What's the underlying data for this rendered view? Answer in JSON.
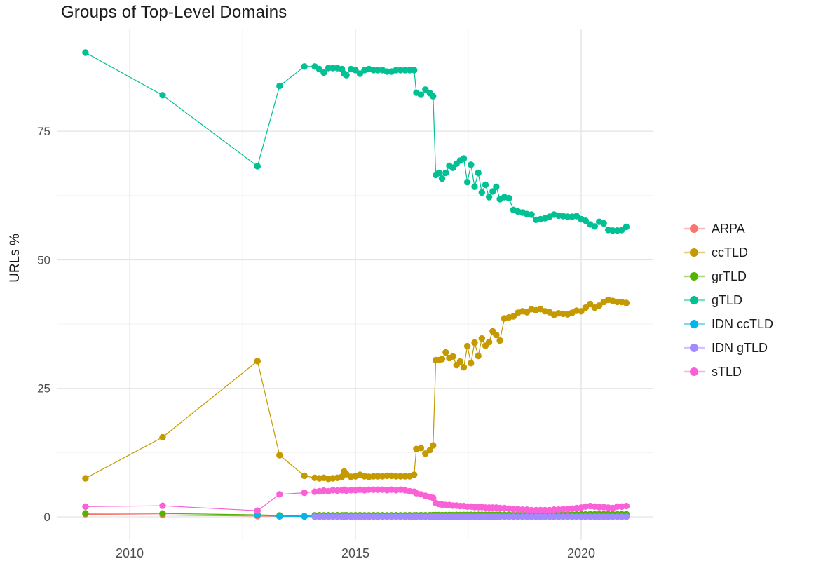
{
  "chart_data": {
    "type": "scatter",
    "title": "Groups of Top-Level Domains",
    "xlabel": "",
    "ylabel": "URLs %",
    "legend_position": "right",
    "grid": "on",
    "x_domain": [
      2008.4,
      2021.6
    ],
    "y_domain": [
      -4.5,
      94.8
    ],
    "x_ticks_major": [
      2010,
      2015,
      2020
    ],
    "x_tick_labels": [
      "2010",
      "2015",
      "2020"
    ],
    "x_ticks_minor": [
      2012.5,
      2017.5
    ],
    "y_ticks_major": [
      0,
      25,
      50,
      75
    ],
    "y_tick_labels": [
      "0",
      "25",
      "50",
      "75"
    ],
    "y_ticks_minor": [
      12.5,
      37.5,
      62.5,
      87.5
    ],
    "early_x": [
      2009.02,
      2010.73,
      2012.83,
      2013.32,
      2013.87
    ],
    "dense_x": [
      2014.1,
      2014.2,
      2014.3,
      2014.4,
      2014.5,
      2014.6,
      2014.7,
      2014.75,
      2014.8,
      2014.9,
      2015.0,
      2015.1,
      2015.2,
      2015.3,
      2015.4,
      2015.5,
      2015.6,
      2015.7,
      2015.8,
      2015.9,
      2016.0,
      2016.1,
      2016.2,
      2016.3,
      2016.35,
      2016.45,
      2016.55,
      2016.65,
      2016.72,
      2016.78,
      2016.85,
      2016.92,
      2017.0,
      2017.08,
      2017.16,
      2017.24,
      2017.32,
      2017.4,
      2017.48,
      2017.56,
      2017.64,
      2017.72,
      2017.8,
      2017.88,
      2017.96,
      2018.04,
      2018.12,
      2018.2,
      2018.3,
      2018.4,
      2018.5,
      2018.6,
      2018.7,
      2018.8,
      2018.9,
      2019.0,
      2019.1,
      2019.2,
      2019.3,
      2019.4,
      2019.5,
      2019.6,
      2019.7,
      2019.8,
      2019.9,
      2020.0,
      2020.1,
      2020.2,
      2020.3,
      2020.4,
      2020.5,
      2020.6,
      2020.7,
      2020.8,
      2020.9,
      2021.0
    ],
    "series": [
      {
        "name": "ARPA",
        "color": "#F8766D",
        "early": [
          0.5,
          0.35,
          0.15,
          0.1,
          0.08
        ],
        "dense_fill": 0.05
      },
      {
        "name": "ccTLD",
        "color": "#C49A00",
        "early": [
          7.5,
          15.5,
          30.3,
          12.0,
          8.0
        ],
        "dense": [
          7.6,
          7.5,
          7.6,
          7.4,
          7.5,
          7.6,
          7.8,
          8.8,
          8.3,
          7.8,
          7.9,
          8.2,
          7.9,
          7.8,
          7.9,
          7.9,
          7.9,
          8.0,
          8.0,
          7.9,
          7.9,
          7.9,
          7.9,
          8.2,
          13.2,
          13.4,
          12.3,
          13.0,
          13.9,
          30.5,
          30.5,
          30.7,
          32.0,
          30.9,
          31.2,
          29.5,
          30.2,
          29.1,
          33.2,
          29.9,
          33.9,
          31.3,
          34.7,
          33.3,
          34.0,
          36.1,
          35.4,
          34.3,
          38.6,
          38.8,
          39.0,
          39.7,
          40.0,
          39.8,
          40.4,
          40.2,
          40.4,
          40.0,
          39.8,
          39.3,
          39.6,
          39.5,
          39.4,
          39.7,
          40.1,
          40.0,
          40.7,
          41.4,
          40.7,
          41.1,
          41.8,
          42.2,
          42.0,
          41.8,
          41.8,
          41.6
        ]
      },
      {
        "name": "grTLD",
        "color": "#53B400",
        "early": [
          0.7,
          0.65,
          0.4,
          0.27,
          0.15
        ],
        "dense": [
          0.3,
          0.32,
          0.3,
          0.31,
          0.3,
          0.32,
          0.3,
          0.3,
          0.31,
          0.3,
          0.3,
          0.31,
          0.3,
          0.3,
          0.32,
          0.3,
          0.31,
          0.3,
          0.3,
          0.31,
          0.3,
          0.3,
          0.31,
          0.3,
          0.32,
          0.33,
          0.32,
          0.33,
          0.34,
          0.35,
          0.35,
          0.36,
          0.35,
          0.37,
          0.36,
          0.38,
          0.37,
          0.38,
          0.38,
          0.39,
          0.38,
          0.4,
          0.39,
          0.4,
          0.41,
          0.4,
          0.42,
          0.41,
          0.42,
          0.42,
          0.43,
          0.42,
          0.44,
          0.43,
          0.44,
          0.45,
          0.44,
          0.46,
          0.45,
          0.46,
          0.47,
          0.46,
          0.48,
          0.47,
          0.48,
          0.5,
          0.49,
          0.5,
          0.51,
          0.5,
          0.52,
          0.5,
          0.51,
          0.52,
          0.5,
          0.52
        ]
      },
      {
        "name": "gTLD",
        "color": "#00C094",
        "early": [
          90.3,
          82.0,
          68.2,
          83.8,
          87.6
        ],
        "dense": [
          87.6,
          87.1,
          86.4,
          87.3,
          87.3,
          87.3,
          87.1,
          86.2,
          85.9,
          87.1,
          86.9,
          86.2,
          86.9,
          87.1,
          86.9,
          86.9,
          86.9,
          86.6,
          86.6,
          86.9,
          86.9,
          86.9,
          86.9,
          86.9,
          82.5,
          82.1,
          83.1,
          82.4,
          81.8,
          66.5,
          66.9,
          65.8,
          66.9,
          68.3,
          67.9,
          68.7,
          69.3,
          69.7,
          65.1,
          68.5,
          64.2,
          66.9,
          63.1,
          64.6,
          62.2,
          63.3,
          64.2,
          61.8,
          62.2,
          62.0,
          59.7,
          59.4,
          59.2,
          58.9,
          58.8,
          57.8,
          57.9,
          58.1,
          58.4,
          58.8,
          58.6,
          58.5,
          58.4,
          58.4,
          58.5,
          57.9,
          57.6,
          56.9,
          56.5,
          57.4,
          57.1,
          55.8,
          55.7,
          55.7,
          55.8,
          56.4
        ]
      },
      {
        "name": "IDN ccTLD",
        "color": "#00B6EB",
        "early": [
          null,
          null,
          0.35,
          0.1,
          0.08
        ],
        "dense_fill": 0.08
      },
      {
        "name": "IDN gTLD",
        "color": "#A58AFF",
        "early": [
          null,
          null,
          null,
          null,
          null
        ],
        "dense_fill": 0.02
      },
      {
        "name": "sTLD",
        "color": "#FB61D7",
        "early": [
          2.0,
          2.15,
          1.2,
          4.4,
          4.7
        ],
        "dense": [
          4.9,
          5.0,
          5.1,
          5.0,
          5.2,
          5.1,
          5.2,
          5.3,
          5.1,
          5.2,
          5.2,
          5.3,
          5.2,
          5.3,
          5.3,
          5.3,
          5.3,
          5.2,
          5.3,
          5.2,
          5.3,
          5.2,
          5.0,
          4.9,
          4.6,
          4.4,
          4.1,
          3.9,
          3.7,
          2.7,
          2.5,
          2.4,
          2.3,
          2.3,
          2.2,
          2.2,
          2.1,
          2.1,
          2.0,
          2.0,
          1.9,
          1.9,
          1.9,
          1.8,
          1.8,
          1.8,
          1.8,
          1.7,
          1.7,
          1.6,
          1.5,
          1.5,
          1.4,
          1.4,
          1.3,
          1.3,
          1.3,
          1.3,
          1.3,
          1.4,
          1.4,
          1.5,
          1.5,
          1.6,
          1.7,
          1.8,
          2.0,
          2.1,
          2.0,
          1.9,
          1.9,
          1.8,
          1.7,
          2.0,
          2.0,
          2.1
        ]
      }
    ],
    "style": {
      "background": "#ffffff",
      "grid_major_color": "#e4e4e4",
      "grid_minor_color": "#f2f2f2",
      "tick_label_color": "#4d4d4d",
      "text_color": "#1c1c1c",
      "point_radius": 4.7,
      "line_width": 1.2
    }
  }
}
